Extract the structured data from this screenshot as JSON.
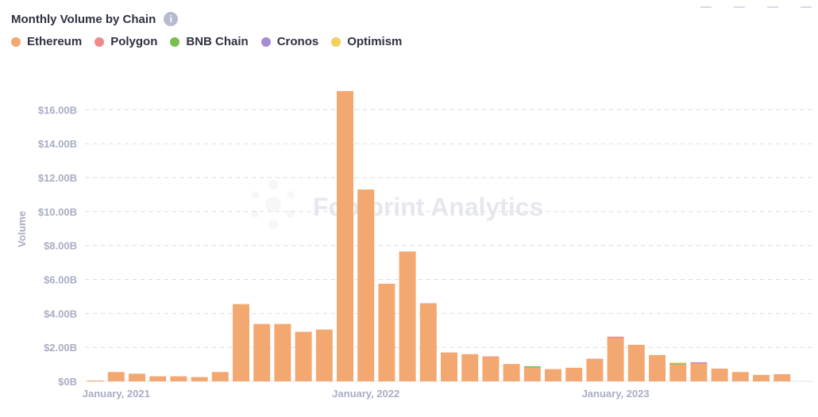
{
  "header": {
    "title": "Monthly Volume by Chain",
    "info_icon": "info-icon"
  },
  "toolbar": {
    "icons": [
      "chart-tool-icon",
      "chart-tool-icon",
      "chart-tool-icon",
      "chart-tool-icon"
    ]
  },
  "legend": [
    {
      "label": "Ethereum",
      "color": "#f2a870"
    },
    {
      "label": "Polygon",
      "color": "#ef8a8a"
    },
    {
      "label": "BNB Chain",
      "color": "#7bc04c"
    },
    {
      "label": "Cronos",
      "color": "#a98bd2"
    },
    {
      "label": "Optimism",
      "color": "#f3cf5b"
    }
  ],
  "watermark": {
    "text": "Footprint Analytics",
    "icon": "footprint-logo-icon"
  },
  "chart_data": {
    "type": "bar",
    "stacked": true,
    "title": "Monthly Volume by Chain",
    "ylabel": "Volume",
    "xlabel": "",
    "ylim": [
      0,
      17000000000
    ],
    "yticks": [
      0,
      2000000000,
      4000000000,
      6000000000,
      8000000000,
      10000000000,
      12000000000,
      14000000000,
      16000000000
    ],
    "ytick_labels": [
      "$0B",
      "$2.00B",
      "$4.00B",
      "$6.00B",
      "$8.00B",
      "$10.00B",
      "$12.00B",
      "$14.00B",
      "$16.00B"
    ],
    "xtick_labels": [
      {
        "label": "January, 2021",
        "index": 1
      },
      {
        "label": "January, 2022",
        "index": 13
      },
      {
        "label": "January, 2023",
        "index": 25
      }
    ],
    "grid": true,
    "legend_position": "top-left",
    "categories": [
      "2020-12",
      "2021-01",
      "2021-02",
      "2021-03",
      "2021-04",
      "2021-05",
      "2021-06",
      "2021-07",
      "2021-08",
      "2021-09",
      "2021-10",
      "2021-11",
      "2021-12",
      "2022-01",
      "2022-02",
      "2022-03",
      "2022-04",
      "2022-05",
      "2022-06",
      "2022-07",
      "2022-08",
      "2022-09",
      "2022-10",
      "2022-11",
      "2022-12",
      "2023-01",
      "2023-02",
      "2023-03",
      "2023-04",
      "2023-05",
      "2023-06",
      "2023-07",
      "2023-08",
      "2023-09",
      "2023-10"
    ],
    "series": [
      {
        "name": "Ethereum",
        "values": [
          0.05,
          0.55,
          0.45,
          0.3,
          0.3,
          0.25,
          0.55,
          4.55,
          3.38,
          3.38,
          2.92,
          3.05,
          17.1,
          11.3,
          5.75,
          7.65,
          4.55,
          1.7,
          1.6,
          1.42,
          1.02,
          0.8,
          0.72,
          0.8,
          1.28,
          2.55,
          2.15,
          1.55,
          0.97,
          1.03,
          0.75,
          0.55,
          0.38,
          0.42,
          0
        ],
        "unit": "billion USD"
      },
      {
        "name": "Polygon",
        "values": [
          0,
          0,
          0,
          0,
          0,
          0,
          0,
          0,
          0,
          0,
          0,
          0,
          0,
          0,
          0,
          0,
          0.04,
          0,
          0,
          0.04,
          0,
          0.03,
          0,
          0,
          0.02,
          0.08,
          0,
          0,
          0.03,
          0.05,
          0,
          0,
          0,
          0,
          0
        ],
        "unit": "billion USD"
      },
      {
        "name": "BNB Chain",
        "values": [
          0,
          0,
          0,
          0,
          0,
          0,
          0,
          0,
          0,
          0,
          0,
          0,
          0,
          0,
          0,
          0,
          0,
          0,
          0,
          0,
          0,
          0.06,
          0,
          0,
          0,
          0,
          0,
          0,
          0.06,
          0,
          0,
          0,
          0,
          0,
          0
        ],
        "unit": "billion USD"
      },
      {
        "name": "Cronos",
        "values": [
          0,
          0,
          0,
          0,
          0,
          0,
          0,
          0,
          0,
          0,
          0,
          0,
          0,
          0,
          0,
          0,
          0,
          0,
          0,
          0,
          0,
          0,
          0,
          0,
          0,
          0,
          0,
          0,
          0,
          0.02,
          0,
          0,
          0,
          0,
          0
        ],
        "unit": "billion USD"
      },
      {
        "name": "Optimism",
        "values": [
          0,
          0,
          0,
          0,
          0,
          0,
          0,
          0,
          0,
          0,
          0,
          0,
          0,
          0,
          0,
          0,
          0,
          0,
          0,
          0,
          0,
          0,
          0,
          0,
          0,
          0,
          0,
          0,
          0.02,
          0,
          0,
          0,
          0,
          0,
          0
        ],
        "unit": "billion USD"
      }
    ]
  }
}
